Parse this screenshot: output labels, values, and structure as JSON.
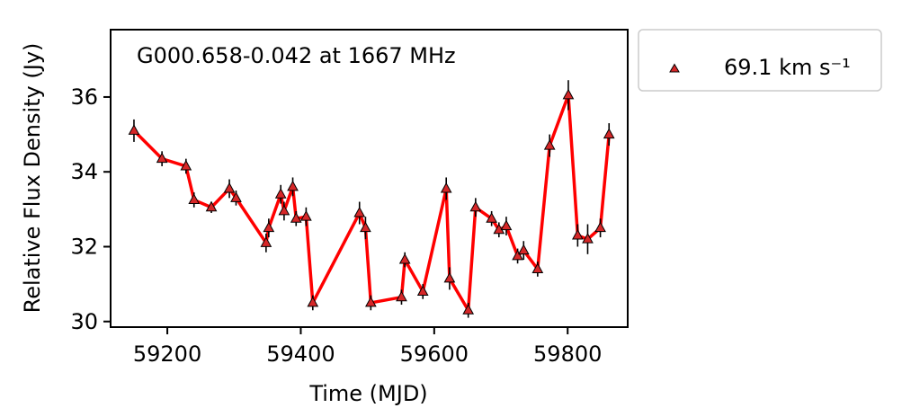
{
  "chart_data": {
    "type": "line",
    "annotation": "G000.658-0.042 at 1667 MHz",
    "xlabel": "Time (MJD)",
    "ylabel": "Relative Flux Density (Jy)",
    "xlim": [
      59115,
      59890
    ],
    "ylim": [
      29.85,
      37.8
    ],
    "xticks": [
      59200,
      59400,
      59600,
      59800
    ],
    "yticks": [
      30,
      32,
      34,
      36
    ],
    "grid": false,
    "legend_position": "outside-top-right",
    "line_color": "#ff0000",
    "marker_color": "#d62728",
    "series": [
      {
        "name": "69.1 km s⁻¹",
        "x": [
          59150,
          59192,
          59228,
          59240,
          59266,
          59293,
          59303,
          59348,
          59352,
          59370,
          59375,
          59388,
          59393,
          59408,
          59418,
          59488,
          59497,
          59505,
          59551,
          59556,
          59583,
          59618,
          59623,
          59651,
          59662,
          59686,
          59697,
          59708,
          59725,
          59734,
          59755,
          59773,
          59801,
          59815,
          59830,
          59849,
          59862
        ],
        "y": [
          35.1,
          34.35,
          34.15,
          33.25,
          33.05,
          33.55,
          33.3,
          32.1,
          32.5,
          33.4,
          32.95,
          33.6,
          32.75,
          32.8,
          30.5,
          32.9,
          32.5,
          30.5,
          30.65,
          31.65,
          30.8,
          33.55,
          31.15,
          30.3,
          33.05,
          32.75,
          32.45,
          32.55,
          31.75,
          31.9,
          31.4,
          34.7,
          36.05,
          32.3,
          32.2,
          32.5,
          35.0
        ],
        "err": [
          0.3,
          0.2,
          0.2,
          0.2,
          0.15,
          0.25,
          0.2,
          0.25,
          0.25,
          0.25,
          0.25,
          0.25,
          0.2,
          0.25,
          0.2,
          0.3,
          0.3,
          0.2,
          0.2,
          0.2,
          0.2,
          0.3,
          0.3,
          0.2,
          0.25,
          0.2,
          0.2,
          0.25,
          0.2,
          0.25,
          0.2,
          0.3,
          0.4,
          0.3,
          0.4,
          0.25,
          0.3
        ]
      }
    ]
  }
}
